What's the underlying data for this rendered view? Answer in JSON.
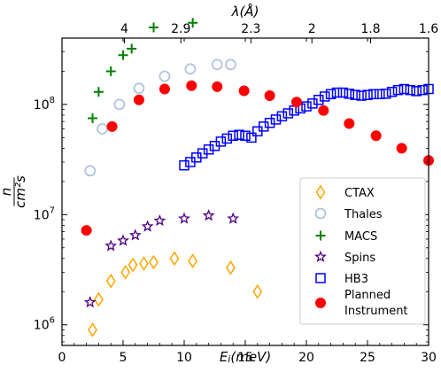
{
  "chart_data": {
    "type": "scatter",
    "xlabel": "E_i(meV)",
    "xlabel_main": "E",
    "xlabel_sub": "i",
    "xlabel_rest": "(meV)",
    "top_xlabel": "λ(Å)",
    "ylabel_num": "n",
    "ylabel_den": "cm²s",
    "xlim": [
      0,
      30
    ],
    "ylim": [
      650000,
      400000000
    ],
    "yscale": "log",
    "x_ticks": [
      0,
      5,
      10,
      15,
      20,
      25,
      30
    ],
    "x_tick_labels": [
      "0",
      "5",
      "10",
      "15",
      "20",
      "25",
      "30"
    ],
    "y_ticks": [
      1000000,
      10000000,
      100000000
    ],
    "y_tick_labels": [
      "10⁶",
      "10⁷",
      "10⁸"
    ],
    "y_tick_base": "10",
    "y_tick_exps": [
      "6",
      "7",
      "8"
    ],
    "top_ticks": [
      {
        "label": "4",
        "x": 5.11
      },
      {
        "label": "2.9",
        "x": 9.73
      },
      {
        "label": "2.3",
        "x": 15.46
      },
      {
        "label": "2",
        "x": 20.45
      },
      {
        "label": "1.8",
        "x": 25.25
      },
      {
        "label": "1.6",
        "x": 31.95
      }
    ],
    "legend_position": "lower-right",
    "series": [
      {
        "name": "CTAX",
        "marker": "diamond",
        "color": "#FFA500",
        "points": [
          [
            2.5,
            900000
          ],
          [
            3.0,
            1700000
          ],
          [
            4.0,
            2500000
          ],
          [
            5.2,
            3000000
          ],
          [
            5.8,
            3500000
          ],
          [
            6.7,
            3600000
          ],
          [
            7.5,
            3700000
          ],
          [
            9.2,
            4000000
          ],
          [
            10.7,
            3800000
          ],
          [
            13.8,
            3300000
          ],
          [
            16.0,
            2000000
          ]
        ]
      },
      {
        "name": "Thales",
        "marker": "circle-open",
        "color": "#B0C4DE",
        "points": [
          [
            2.3,
            25000000
          ],
          [
            3.3,
            60000000
          ],
          [
            4.7,
            100000000
          ],
          [
            6.3,
            140000000
          ],
          [
            8.4,
            180000000
          ],
          [
            10.5,
            210000000
          ],
          [
            12.7,
            230000000
          ],
          [
            13.8,
            230000000
          ]
        ]
      },
      {
        "name": "MACS",
        "marker": "plus",
        "color": "#008000",
        "points": [
          [
            2.5,
            75000000
          ],
          [
            3.0,
            130000000
          ],
          [
            4.0,
            200000000
          ],
          [
            5.0,
            280000000
          ],
          [
            5.7,
            320000000
          ],
          [
            7.5,
            500000000
          ],
          [
            10.7,
            550000000
          ]
        ]
      },
      {
        "name": "Spins",
        "marker": "star",
        "color": "#4B0082",
        "points": [
          [
            2.3,
            1600000
          ],
          [
            4.0,
            5200000
          ],
          [
            5.0,
            5800000
          ],
          [
            6.0,
            6500000
          ],
          [
            7.0,
            7800000
          ],
          [
            8.0,
            8800000
          ],
          [
            10.0,
            9200000
          ],
          [
            12.0,
            9800000
          ],
          [
            14.0,
            9200000
          ]
        ]
      },
      {
        "name": "HB3",
        "marker": "square-open",
        "color": "#0000FF",
        "points": [
          [
            10.0,
            28000000
          ],
          [
            10.5,
            30000000
          ],
          [
            11.0,
            33000000
          ],
          [
            11.5,
            36000000
          ],
          [
            12.0,
            39000000
          ],
          [
            12.5,
            42000000
          ],
          [
            13.0,
            46000000
          ],
          [
            13.5,
            49000000
          ],
          [
            14.0,
            52000000
          ],
          [
            14.5,
            53000000
          ],
          [
            15.0,
            52000000
          ],
          [
            15.5,
            50000000
          ],
          [
            16.0,
            57000000
          ],
          [
            16.5,
            63000000
          ],
          [
            17.0,
            68000000
          ],
          [
            17.5,
            73000000
          ],
          [
            18.0,
            78000000
          ],
          [
            18.5,
            83000000
          ],
          [
            19.0,
            88000000
          ],
          [
            19.5,
            92000000
          ],
          [
            20.0,
            96000000
          ],
          [
            20.5,
            102000000
          ],
          [
            21.0,
            110000000
          ],
          [
            21.5,
            118000000
          ],
          [
            22.0,
            124000000
          ],
          [
            22.5,
            128000000
          ],
          [
            23.0,
            128000000
          ],
          [
            23.5,
            125000000
          ],
          [
            24.0,
            122000000
          ],
          [
            24.5,
            120000000
          ],
          [
            25.0,
            122000000
          ],
          [
            25.5,
            124000000
          ],
          [
            26.0,
            124000000
          ],
          [
            26.5,
            125000000
          ],
          [
            27.0,
            130000000
          ],
          [
            27.5,
            135000000
          ],
          [
            28.0,
            138000000
          ],
          [
            28.5,
            135000000
          ],
          [
            29.0,
            132000000
          ],
          [
            29.5,
            135000000
          ],
          [
            30.0,
            138000000
          ]
        ]
      },
      {
        "name": "Planned Instrument",
        "name_lines": [
          "Planned",
          "Instrument"
        ],
        "marker": "circle-filled",
        "color": "#FF0000",
        "points": [
          [
            2.0,
            7200000
          ],
          [
            4.1,
            63000000
          ],
          [
            6.3,
            110000000
          ],
          [
            8.4,
            138000000
          ],
          [
            10.6,
            148000000
          ],
          [
            12.7,
            145000000
          ],
          [
            14.9,
            133000000
          ],
          [
            17.0,
            120000000
          ],
          [
            19.2,
            105000000
          ],
          [
            21.4,
            88000000
          ],
          [
            23.5,
            67000000
          ],
          [
            25.7,
            52000000
          ],
          [
            27.8,
            40000000
          ],
          [
            30.0,
            31000000
          ]
        ]
      }
    ]
  }
}
